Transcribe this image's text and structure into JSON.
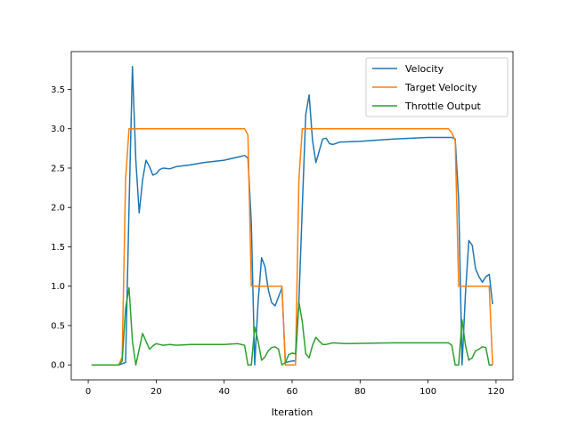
{
  "chart_data": {
    "type": "line",
    "title": "",
    "xlabel": "Iteration",
    "ylabel": "",
    "xlim": [
      -5,
      125
    ],
    "ylim": [
      -0.19,
      3.98
    ],
    "x_ticks": [
      0,
      20,
      40,
      60,
      80,
      100,
      120
    ],
    "y_ticks": [
      0.0,
      0.5,
      1.0,
      1.5,
      2.0,
      2.5,
      3.0,
      3.5
    ],
    "x_tick_labels": [
      "0",
      "20",
      "40",
      "60",
      "80",
      "100",
      "120"
    ],
    "y_tick_labels": [
      "0.0",
      "0.5",
      "1.0",
      "1.5",
      "2.0",
      "2.5",
      "3.0",
      "3.5"
    ],
    "grid": false,
    "legend_position": "top-right",
    "series": [
      {
        "name": "Velocity",
        "color": "#1f77b4",
        "points": [
          [
            1,
            0
          ],
          [
            9,
            0
          ],
          [
            11,
            0.03
          ],
          [
            12,
            2.0
          ],
          [
            13,
            3.79
          ],
          [
            14,
            2.6
          ],
          [
            15,
            1.93
          ],
          [
            16,
            2.35
          ],
          [
            17,
            2.6
          ],
          [
            18,
            2.52
          ],
          [
            19,
            2.41
          ],
          [
            20,
            2.43
          ],
          [
            21,
            2.48
          ],
          [
            22,
            2.5
          ],
          [
            24,
            2.49
          ],
          [
            26,
            2.52
          ],
          [
            30,
            2.54
          ],
          [
            34,
            2.57
          ],
          [
            40,
            2.6
          ],
          [
            44,
            2.64
          ],
          [
            46,
            2.66
          ],
          [
            47,
            2.63
          ],
          [
            48,
            1.8
          ],
          [
            49,
            0
          ],
          [
            50,
            0.8
          ],
          [
            51,
            1.36
          ],
          [
            52,
            1.25
          ],
          [
            53,
            0.95
          ],
          [
            54,
            0.79
          ],
          [
            55,
            0.75
          ],
          [
            57,
            0.98
          ],
          [
            58,
            0.03
          ],
          [
            60,
            0.05
          ],
          [
            61,
            0.05
          ],
          [
            62,
            0.8
          ],
          [
            63,
            2.0
          ],
          [
            64,
            3.18
          ],
          [
            65,
            3.43
          ],
          [
            66,
            2.85
          ],
          [
            67,
            2.57
          ],
          [
            68,
            2.72
          ],
          [
            69,
            2.87
          ],
          [
            70,
            2.88
          ],
          [
            71,
            2.81
          ],
          [
            72,
            2.8
          ],
          [
            74,
            2.83
          ],
          [
            80,
            2.84
          ],
          [
            90,
            2.87
          ],
          [
            100,
            2.89
          ],
          [
            107,
            2.89
          ],
          [
            108,
            2.87
          ],
          [
            109,
            2.1
          ],
          [
            110,
            0
          ],
          [
            111,
            0.9
          ],
          [
            112,
            1.58
          ],
          [
            113,
            1.52
          ],
          [
            114,
            1.22
          ],
          [
            115,
            1.12
          ],
          [
            116,
            1.05
          ],
          [
            117,
            1.12
          ],
          [
            118,
            1.15
          ],
          [
            119,
            0.77
          ]
        ]
      },
      {
        "name": "Target Velocity",
        "color": "#ff7f0e",
        "points": [
          [
            1,
            0
          ],
          [
            9,
            0
          ],
          [
            10,
            0.1
          ],
          [
            11,
            2.35
          ],
          [
            12,
            3.0
          ],
          [
            46,
            3.0
          ],
          [
            47,
            2.92
          ],
          [
            48,
            1.0
          ],
          [
            57,
            1.0
          ],
          [
            58,
            0
          ],
          [
            61,
            0
          ],
          [
            62,
            2.35
          ],
          [
            63,
            3.0
          ],
          [
            106,
            3.0
          ],
          [
            107,
            2.95
          ],
          [
            108,
            2.85
          ],
          [
            109,
            1.0
          ],
          [
            118,
            1.0
          ],
          [
            119,
            0
          ]
        ]
      },
      {
        "name": "Throttle Output",
        "color": "#2ca02c",
        "points": [
          [
            1,
            0
          ],
          [
            9,
            0
          ],
          [
            10,
            0.05
          ],
          [
            11,
            0.72
          ],
          [
            12,
            0.98
          ],
          [
            13,
            0.3
          ],
          [
            14,
            0
          ],
          [
            15,
            0.2
          ],
          [
            16,
            0.4
          ],
          [
            17,
            0.3
          ],
          [
            18,
            0.2
          ],
          [
            19,
            0.24
          ],
          [
            20,
            0.27
          ],
          [
            21,
            0.26
          ],
          [
            22,
            0.25
          ],
          [
            24,
            0.26
          ],
          [
            26,
            0.25
          ],
          [
            30,
            0.26
          ],
          [
            34,
            0.26
          ],
          [
            40,
            0.26
          ],
          [
            44,
            0.27
          ],
          [
            46,
            0.25
          ],
          [
            47,
            0
          ],
          [
            48,
            0
          ],
          [
            49,
            0.48
          ],
          [
            50,
            0.3
          ],
          [
            51,
            0.06
          ],
          [
            52,
            0.1
          ],
          [
            53,
            0.18
          ],
          [
            54,
            0.22
          ],
          [
            55,
            0.23
          ],
          [
            56,
            0.2
          ],
          [
            57,
            0
          ],
          [
            58,
            0.03
          ],
          [
            59,
            0.13
          ],
          [
            60,
            0.15
          ],
          [
            61,
            0.14
          ],
          [
            62,
            0.8
          ],
          [
            63,
            0.55
          ],
          [
            64,
            0.14
          ],
          [
            65,
            0.09
          ],
          [
            66,
            0.25
          ],
          [
            67,
            0.35
          ],
          [
            68,
            0.3
          ],
          [
            69,
            0.26
          ],
          [
            70,
            0.26
          ],
          [
            72,
            0.28
          ],
          [
            76,
            0.27
          ],
          [
            90,
            0.28
          ],
          [
            106,
            0.28
          ],
          [
            107,
            0.25
          ],
          [
            108,
            0
          ],
          [
            109,
            0
          ],
          [
            110,
            0.57
          ],
          [
            111,
            0.25
          ],
          [
            112,
            0.06
          ],
          [
            113,
            0.09
          ],
          [
            114,
            0.18
          ],
          [
            115,
            0.2
          ],
          [
            116,
            0.23
          ],
          [
            117,
            0.22
          ],
          [
            118,
            0
          ],
          [
            119,
            0
          ]
        ]
      }
    ]
  }
}
